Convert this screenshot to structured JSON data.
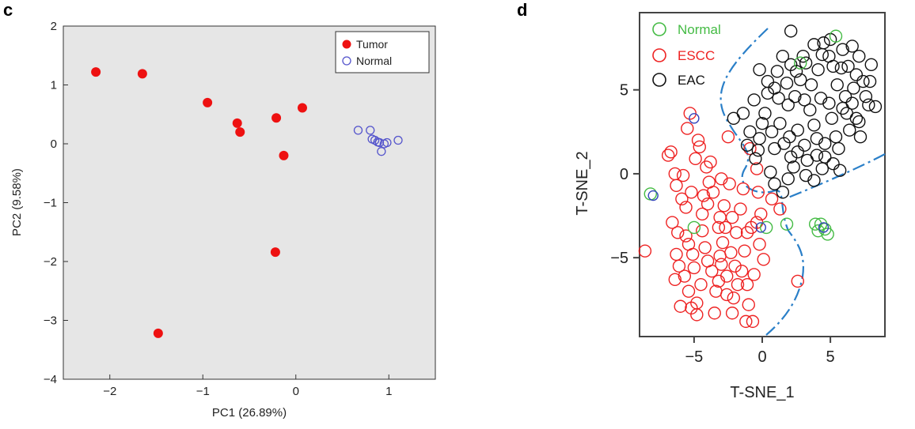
{
  "chart_data": [
    {
      "panel": "c",
      "type": "scatter",
      "title": "",
      "xlabel": "PC1 (26.89%)",
      "ylabel": "PC2 (9.58%)",
      "xlim": [
        -2.5,
        1.5
      ],
      "ylim": [
        -4,
        2
      ],
      "xticks": [
        -2,
        -1,
        0,
        1
      ],
      "yticks": [
        2,
        1,
        0,
        -1,
        -2,
        -3,
        -4
      ],
      "xtick_labels": [
        "−2",
        "−1",
        "0",
        "1"
      ],
      "ytick_labels": [
        "2",
        "1",
        "0",
        "−1",
        "−2",
        "−3",
        "−4"
      ],
      "background": "#e6e6e6",
      "legend_position": "top-right",
      "series": [
        {
          "name": "Tumor",
          "color": "#ee1111",
          "marker": "filled-circle",
          "x": [
            -2.15,
            -1.65,
            -1.48,
            -0.95,
            -0.63,
            -0.6,
            -0.21,
            -0.13,
            0.07,
            -0.22
          ],
          "y": [
            1.22,
            1.19,
            -3.22,
            0.7,
            0.35,
            0.2,
            0.44,
            -0.2,
            0.61,
            -1.84
          ]
        },
        {
          "name": "Normal",
          "color": "#5555cc",
          "marker": "open-circle",
          "x": [
            0.67,
            0.8,
            0.82,
            0.85,
            0.9,
            0.92,
            0.98,
            1.1,
            0.88,
            0.95
          ],
          "y": [
            0.23,
            0.23,
            0.08,
            0.06,
            0.02,
            -0.13,
            0.02,
            0.06,
            0.03,
            0.0
          ]
        }
      ]
    },
    {
      "panel": "d",
      "type": "scatter",
      "title": "",
      "xlabel": "T-SNE_1",
      "ylabel": "T-SNE_2",
      "xlim": [
        -9,
        9
      ],
      "ylim": [
        -9.7,
        9.6
      ],
      "xticks": [
        -5,
        0,
        5
      ],
      "yticks": [
        5,
        0,
        -5
      ],
      "xtick_labels": [
        "−5",
        "0",
        "5"
      ],
      "ytick_labels": [
        "5",
        "0",
        "−5"
      ],
      "legend_position": "top-left",
      "series": [
        {
          "name": "Normal",
          "color": "#44bb44",
          "marker": "open-circle",
          "x": [
            -8.2,
            -5,
            1.8,
            0.3,
            3.9,
            4.1,
            4.3,
            4.6,
            4.8,
            5.4,
            2.8
          ],
          "y": [
            -1.2,
            -3.2,
            -3.0,
            -3.2,
            -3.0,
            -3.4,
            -3.0,
            -3.3,
            -3.6,
            8.2,
            6.6
          ]
        },
        {
          "name": "ESCC",
          "color": "#ee2222",
          "marker": "open-circle",
          "points": [
            [
              -8.6,
              -4.6
            ],
            [
              -6.7,
              1.3
            ],
            [
              -6.3,
              -0.7
            ],
            [
              -6.6,
              -2.9
            ],
            [
              -6.3,
              -4.8
            ],
            [
              -6.4,
              -6.3
            ],
            [
              -5.8,
              -0.1
            ],
            [
              -5.6,
              -2.0
            ],
            [
              -5.4,
              -4.2
            ],
            [
              -5.0,
              -5.6
            ],
            [
              -4.7,
              2.0
            ],
            [
              -4.1,
              0.4
            ],
            [
              -3.6,
              -1.1
            ],
            [
              -3.1,
              -2.6
            ],
            [
              -2.9,
              -4.1
            ],
            [
              -2.6,
              -6.1
            ],
            [
              -2.1,
              -7.4
            ],
            [
              -1.6,
              -2.1
            ],
            [
              -1.3,
              -4.6
            ],
            [
              -1.1,
              -6.6
            ],
            [
              -0.4,
              -2.9
            ],
            [
              0.1,
              -5.1
            ],
            [
              0.7,
              -1.5
            ],
            [
              -5.3,
              3.6
            ],
            [
              -4.8,
              -7.7
            ],
            [
              -1.2,
              -8.8
            ],
            [
              -4.0,
              -1.8
            ],
            [
              -3.1,
              -4.9
            ],
            [
              -2.0,
              -5.5
            ],
            [
              -3.4,
              -7.0
            ],
            [
              -5.6,
              -3.7
            ],
            [
              -6.0,
              -7.9
            ],
            [
              -1.1,
              -3.5
            ],
            [
              -2.4,
              -0.6
            ],
            [
              -4.5,
              -6.6
            ],
            [
              -3.2,
              -3.2
            ],
            [
              -4.9,
              0.9
            ],
            [
              -0.9,
              1.5
            ],
            [
              -2.5,
              2.2
            ],
            [
              -6.9,
              1.1
            ],
            [
              -4.4,
              -3.4
            ],
            [
              -2.2,
              -2.6
            ],
            [
              -0.2,
              -4.2
            ],
            [
              -4.0,
              -5.2
            ],
            [
              -5.2,
              -1.1
            ],
            [
              -3.8,
              0.7
            ],
            [
              -3.0,
              -0.3
            ],
            [
              -1.8,
              -6.6
            ],
            [
              -2.6,
              -7.2
            ],
            [
              -5.4,
              -7.0
            ],
            [
              -6.1,
              -5.5
            ],
            [
              -4.8,
              -8.4
            ],
            [
              -0.6,
              -6.0
            ],
            [
              -1.9,
              -3.5
            ],
            [
              -0.4,
              0.3
            ],
            [
              -3.5,
              -8.3
            ],
            [
              -5.9,
              -1.5
            ],
            [
              -6.4,
              0.0
            ],
            [
              -4.4,
              -2.4
            ],
            [
              -1.4,
              -0.9
            ],
            [
              -1.0,
              -7.8
            ],
            [
              -3.7,
              -5.8
            ],
            [
              -0.3,
              -1.1
            ],
            [
              -2.8,
              -1.9
            ],
            [
              -4.2,
              -4.4
            ],
            [
              -2.3,
              -4.7
            ],
            [
              -0.1,
              -2.4
            ],
            [
              -5.7,
              -6.1
            ],
            [
              -3.2,
              -6.4
            ],
            [
              -1.5,
              -5.8
            ],
            [
              1.3,
              -2.1
            ],
            [
              2.6,
              -6.4
            ],
            [
              -6.2,
              -3.5
            ],
            [
              -4.6,
              1.6
            ],
            [
              -5.5,
              2.7
            ],
            [
              -3.9,
              -0.5
            ],
            [
              -0.8,
              -3.2
            ],
            [
              -2.7,
              -3.2
            ],
            [
              -4.3,
              -1.3
            ],
            [
              -5.1,
              -4.8
            ],
            [
              -2.2,
              -8.3
            ],
            [
              -0.7,
              -8.8
            ],
            [
              -5.2,
              -8.0
            ],
            [
              -3.0,
              -5.4
            ]
          ]
        },
        {
          "name": "EAC",
          "color": "#111111",
          "marker": "open-circle",
          "points": [
            [
              2.1,
              8.5
            ],
            [
              3.8,
              7.7
            ],
            [
              4.5,
              7.8
            ],
            [
              5.9,
              7.4
            ],
            [
              7.1,
              7.0
            ],
            [
              8.0,
              6.5
            ],
            [
              2.1,
              6.5
            ],
            [
              1.1,
              6.1
            ],
            [
              0.4,
              5.5
            ],
            [
              0.4,
              4.8
            ],
            [
              1.9,
              4.1
            ],
            [
              3.1,
              4.4
            ],
            [
              4.3,
              4.5
            ],
            [
              5.5,
              5.3
            ],
            [
              6.7,
              5.1
            ],
            [
              7.6,
              4.6
            ],
            [
              8.3,
              4.0
            ],
            [
              -2.1,
              3.3
            ],
            [
              -1.4,
              3.6
            ],
            [
              -0.6,
              4.4
            ],
            [
              0.2,
              3.6
            ],
            [
              1.3,
              3.0
            ],
            [
              2.6,
              2.6
            ],
            [
              3.8,
              2.9
            ],
            [
              5.1,
              3.3
            ],
            [
              6.2,
              3.6
            ],
            [
              7.1,
              3.1
            ],
            [
              -1.1,
              1.7
            ],
            [
              -0.2,
              2.1
            ],
            [
              0.9,
              1.5
            ],
            [
              2.1,
              1.0
            ],
            [
              3.3,
              0.8
            ],
            [
              4.6,
              1.0
            ],
            [
              5.6,
              1.5
            ],
            [
              -0.5,
              0.9
            ],
            [
              0.6,
              0.1
            ],
            [
              1.9,
              -0.3
            ],
            [
              3.2,
              -0.1
            ],
            [
              4.4,
              0.3
            ],
            [
              5.2,
              0.6
            ],
            [
              1.5,
              -1.1
            ],
            [
              2.8,
              5.6
            ],
            [
              4.1,
              6.2
            ],
            [
              5.2,
              6.4
            ],
            [
              6.3,
              6.4
            ],
            [
              6.9,
              5.9
            ],
            [
              7.9,
              5.5
            ],
            [
              1.5,
              7.0
            ],
            [
              3.0,
              7.0
            ],
            [
              4.4,
              7.1
            ],
            [
              5.8,
              6.3
            ],
            [
              3.6,
              5.3
            ],
            [
              2.4,
              4.6
            ],
            [
              4.9,
              4.2
            ],
            [
              6.1,
              4.6
            ],
            [
              6.6,
              4.2
            ],
            [
              7.8,
              4.1
            ],
            [
              1.2,
              4.5
            ],
            [
              0.0,
              3.0
            ],
            [
              -0.9,
              2.5
            ],
            [
              0.7,
              2.5
            ],
            [
              2.0,
              2.2
            ],
            [
              3.1,
              1.7
            ],
            [
              4.0,
              2.1
            ],
            [
              5.4,
              2.2
            ],
            [
              6.4,
              2.6
            ],
            [
              7.2,
              2.2
            ],
            [
              -0.3,
              1.4
            ],
            [
              1.6,
              1.8
            ],
            [
              2.6,
              1.3
            ],
            [
              4.0,
              1.1
            ],
            [
              4.6,
              1.8
            ],
            [
              5.7,
              0.2
            ],
            [
              0.9,
              -0.6
            ],
            [
              2.3,
              0.4
            ],
            [
              3.8,
              -0.4
            ],
            [
              2.5,
              6.1
            ],
            [
              3.2,
              6.6
            ],
            [
              4.9,
              7.0
            ],
            [
              6.6,
              7.6
            ],
            [
              7.4,
              5.5
            ],
            [
              0.9,
              5.1
            ],
            [
              1.8,
              5.4
            ],
            [
              3.5,
              3.8
            ],
            [
              5.9,
              3.9
            ],
            [
              6.9,
              3.3
            ],
            [
              -0.2,
              6.2
            ],
            [
              5.0,
              8.0
            ]
          ]
        }
      ]
    }
  ],
  "panel_c": {
    "letter": "c",
    "legend": [
      "Tumor",
      "Normal"
    ]
  },
  "panel_d": {
    "letter": "d",
    "legend": [
      "Normal",
      "ESCC",
      "EAC"
    ]
  }
}
